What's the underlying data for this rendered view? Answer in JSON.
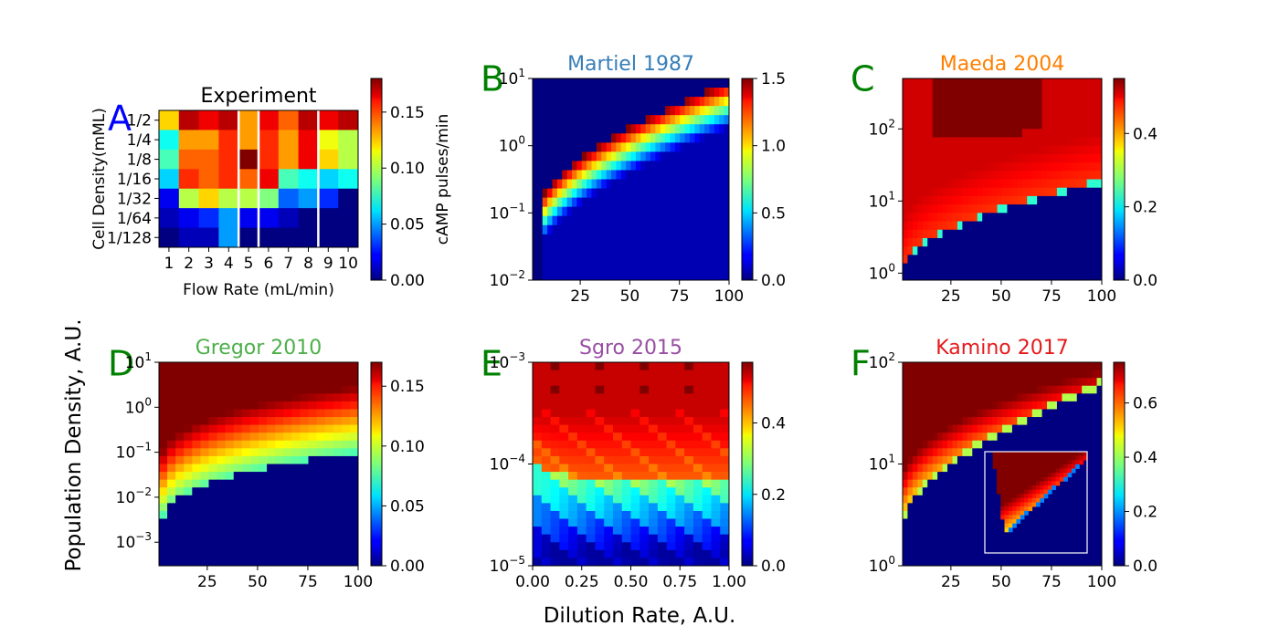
{
  "figure": {
    "ylabel": "Population Density, A.U.",
    "xlabel": "Dilution Rate, A.U."
  },
  "chart_data": [
    {
      "type": "heatmap",
      "panel": "A",
      "letter_color": "#0000ff",
      "title": "Experiment",
      "title_color": "#000000",
      "xlabel": "Flow Rate (mL/min)",
      "ylabel": "Cell Density(mML)",
      "x_ticklabels": [
        "1",
        "2",
        "3",
        "4",
        "5",
        "6",
        "7",
        "8",
        "9",
        "10"
      ],
      "y_ticklabels": [
        "1/2",
        "1/4",
        "1/8",
        "1/16",
        "1/32",
        "1/64",
        "1/128"
      ],
      "colorbar": {
        "label": "cAMP pulses/min",
        "range": [
          0,
          0.18
        ],
        "ticks": [
          "0.00",
          "0.05",
          "0.10",
          "0.15"
        ]
      },
      "values": [
        [
          0.12,
          0.17,
          0.16,
          0.17,
          0.13,
          0.16,
          0.14,
          0.17,
          0.16,
          0.17
        ],
        [
          0.07,
          0.13,
          0.13,
          0.15,
          0.13,
          0.15,
          0.13,
          0.16,
          0.11,
          0.1
        ],
        [
          0.08,
          0.14,
          0.14,
          0.15,
          0.18,
          0.15,
          0.13,
          0.16,
          0.12,
          0.1
        ],
        [
          0.06,
          0.15,
          0.14,
          0.15,
          0.14,
          0.16,
          0.08,
          0.07,
          0.06,
          0.07
        ],
        [
          0.02,
          0.1,
          0.12,
          0.1,
          0.1,
          0.09,
          0.04,
          0.05,
          0.03,
          0.0
        ],
        [
          0.01,
          0.02,
          0.03,
          0.05,
          0.02,
          0.02,
          0.01,
          0.0,
          0.0,
          0.0
        ],
        [
          0.0,
          0.01,
          0.01,
          0.05,
          0.0,
          0.0,
          0.0,
          0.0,
          0.0,
          0.0
        ]
      ]
    },
    {
      "type": "heatmap",
      "panel": "B",
      "letter_color": "#008000",
      "title": "Martiel 1987",
      "title_color": "#377eb8",
      "x_ticklabels": [
        "25",
        "50",
        "75",
        "100"
      ],
      "y_ticklabels": [
        "10^1",
        "10^0",
        "10^-1",
        "10^-2"
      ],
      "xlim": [
        1,
        100
      ],
      "ylim": [
        0.01,
        10
      ],
      "yscale": "log",
      "colorbar": {
        "range": [
          0,
          1.5
        ],
        "ticks": [
          "0.0",
          "0.5",
          "1.0",
          "1.5"
        ]
      }
    },
    {
      "type": "heatmap",
      "panel": "C",
      "letter_color": "#008000",
      "title": "Maeda 2004",
      "title_color": "#ff7f00",
      "x_ticklabels": [
        "25",
        "50",
        "75",
        "100"
      ],
      "y_ticklabels": [
        "10^2",
        "10^1",
        "10^0"
      ],
      "xlim": [
        1,
        100
      ],
      "ylim": [
        0.8,
        500
      ],
      "yscale": "log",
      "colorbar": {
        "range": [
          0,
          0.55
        ],
        "ticks": [
          "0.0",
          "0.2",
          "0.4"
        ]
      }
    },
    {
      "type": "heatmap",
      "panel": "D",
      "letter_color": "#008000",
      "title": "Gregor 2010",
      "title_color": "#4daf4a",
      "x_ticklabels": [
        "25",
        "50",
        "75",
        "100"
      ],
      "y_ticklabels": [
        "10^1",
        "10^0",
        "10^-1",
        "10^-2",
        "10^-3"
      ],
      "xlim": [
        1,
        100
      ],
      "ylim": [
        0.0003,
        10
      ],
      "yscale": "log",
      "colorbar": {
        "range": [
          0,
          0.17
        ],
        "ticks": [
          "0.00",
          "0.05",
          "0.10",
          "0.15"
        ]
      }
    },
    {
      "type": "heatmap",
      "panel": "E",
      "letter_color": "#008000",
      "title": "Sgro 2015",
      "title_color": "#984ea3",
      "x_ticklabels": [
        "0.00",
        "0.25",
        "0.50",
        "0.75",
        "1.00"
      ],
      "y_ticklabels": [
        "10^-3",
        "10^-4",
        "10^-5"
      ],
      "xlim": [
        0,
        1
      ],
      "ylim": [
        1e-05,
        0.001
      ],
      "yscale": "log",
      "colorbar": {
        "range": [
          0,
          0.57
        ],
        "ticks": [
          "0.0",
          "0.2",
          "0.4"
        ]
      }
    },
    {
      "type": "heatmap",
      "panel": "F",
      "letter_color": "#008000",
      "title": "Kamino 2017",
      "title_color": "#e41a1c",
      "x_ticklabels": [
        "25",
        "50",
        "75",
        "100"
      ],
      "y_ticklabels": [
        "10^2",
        "10^1",
        "10^0"
      ],
      "xlim": [
        1,
        100
      ],
      "ylim": [
        1,
        100
      ],
      "yscale": "log",
      "colorbar": {
        "range": [
          0,
          0.75
        ],
        "ticks": [
          "0.0",
          "0.2",
          "0.4",
          "0.6"
        ]
      }
    }
  ]
}
